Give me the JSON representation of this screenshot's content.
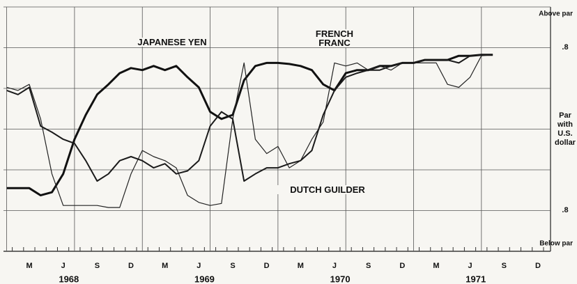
{
  "chart_data": {
    "type": "line",
    "categories": [
      null,
      null,
      "M",
      null,
      null,
      "J",
      null,
      null,
      "S",
      null,
      null,
      "D",
      null,
      null,
      "M",
      null,
      null,
      "J",
      null,
      null,
      "S",
      null,
      null,
      "D",
      null,
      null,
      "M",
      null,
      null,
      "J",
      null,
      null,
      "S",
      null,
      null,
      "D",
      null,
      null,
      "M",
      null,
      null,
      "J",
      null,
      null,
      "S",
      null,
      null,
      "D"
    ],
    "years": [
      "1968",
      "1969",
      "1970",
      "1971"
    ],
    "ylim": [
      -1.2,
      1.2
    ],
    "yticks": [
      {
        "value": 0.8,
        "label": ".8"
      },
      {
        "value": 0,
        "label": "Par with U.S. dollar"
      },
      {
        "value": -0.8,
        "label": ".8"
      }
    ],
    "ygrid": [
      1.2,
      0.4,
      -0.4,
      -1.2
    ],
    "above_label": "Above par",
    "below_label": "Below par",
    "grid": true,
    "series": [
      {
        "name": "JAPANESE YEN",
        "color": "#111111",
        "width": 3,
        "values": [
          -0.58,
          -0.58,
          -0.58,
          -0.65,
          -0.62,
          -0.44,
          -0.1,
          0.14,
          0.34,
          0.44,
          0.55,
          0.6,
          0.58,
          0.62,
          0.58,
          0.62,
          0.51,
          0.41,
          0.17,
          0.1,
          0.14,
          0.48,
          0.62,
          0.65,
          0.65,
          0.64,
          0.62,
          0.58,
          0.44,
          0.38,
          0.55,
          0.58,
          0.58,
          0.62,
          0.62,
          0.65,
          0.65,
          0.68,
          0.68,
          0.68,
          0.72,
          0.72,
          0.73,
          0.73,
          null,
          null,
          null,
          null
        ]
      },
      {
        "name": "FRENCH FRANC",
        "color": "#222222",
        "width": 1.2,
        "values": [
          0.41,
          0.38,
          0.44,
          0.1,
          -0.44,
          -0.75,
          -0.75,
          -0.75,
          -0.75,
          -0.77,
          -0.77,
          -0.44,
          -0.21,
          -0.27,
          -0.31,
          -0.38,
          -0.65,
          -0.72,
          -0.75,
          -0.73,
          0.1,
          0.65,
          -0.1,
          -0.24,
          -0.17,
          -0.38,
          -0.31,
          -0.1,
          0.07,
          0.65,
          0.62,
          0.65,
          0.58,
          0.62,
          0.58,
          0.65,
          0.65,
          0.65,
          0.65,
          0.44,
          0.41,
          0.51,
          0.72,
          0.73,
          null,
          null,
          null,
          null
        ]
      },
      {
        "name": "DUTCH GUILDER",
        "color": "#1a1a1a",
        "width": 2,
        "values": [
          0.38,
          0.34,
          0.41,
          0.03,
          -0.03,
          -0.1,
          -0.14,
          -0.31,
          -0.51,
          -0.44,
          -0.31,
          -0.27,
          -0.31,
          -0.38,
          -0.34,
          -0.44,
          -0.41,
          -0.31,
          0.03,
          0.17,
          0.1,
          -0.51,
          -0.44,
          -0.38,
          -0.38,
          -0.34,
          -0.31,
          -0.21,
          0.14,
          0.38,
          0.51,
          0.55,
          0.58,
          0.58,
          0.62,
          0.65,
          0.65,
          0.68,
          0.68,
          0.68,
          0.65,
          0.72,
          0.73,
          0.73,
          null,
          null,
          null,
          null
        ]
      }
    ]
  }
}
